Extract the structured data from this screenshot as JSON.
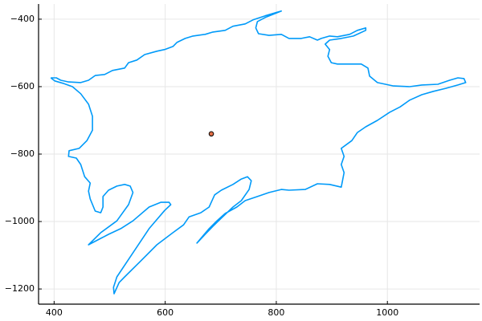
{
  "chart_data": {
    "type": "line",
    "xlim": [
      372,
      1166
    ],
    "ylim": [
      -1245,
      -355
    ],
    "xticks": [
      400,
      600,
      800,
      1000
    ],
    "yticks": [
      {
        "value": -400,
        "label": "−400"
      },
      {
        "value": -600,
        "label": "−600"
      },
      {
        "value": -800,
        "label": "−800"
      },
      {
        "value": -1000,
        "label": "−1000"
      },
      {
        "value": -1200,
        "label": "−1200"
      }
    ],
    "grid": true,
    "series": [
      {
        "type": "line",
        "color": "#009af9",
        "x": [
          394,
          404,
          412,
          426,
          448,
          462,
          474,
          491,
          505,
          527,
          534,
          549,
          563,
          585,
          599,
          614,
          621,
          636,
          650,
          672,
          686,
          708,
          722,
          744,
          758,
          780,
          802,
          809,
          780,
          766,
          763,
          768,
          787,
          809,
          823,
          845,
          860,
          874,
          881,
          896,
          910,
          932,
          946,
          961,
          961,
          939,
          917,
          896,
          888,
          896,
          893,
          899,
          910,
          932,
          953,
          965,
          968,
          982,
          1011,
          1040,
          1062,
          1091,
          1112,
          1127,
          1138,
          1141,
          1127,
          1105,
          1083,
          1062,
          1040,
          1023,
          1004,
          982,
          961,
          946,
          936,
          927,
          917,
          922,
          917,
          922,
          917,
          896,
          874,
          852,
          823,
          809,
          787,
          766,
          744,
          729,
          708,
          693,
          679,
          657,
          672,
          686,
          701,
          722,
          737,
          751,
          755,
          748,
          737,
          722,
          701,
          689,
          679,
          664,
          643,
          633,
          614,
          585,
          556,
          527,
          517,
          508,
          507,
          513,
          542,
          571,
          599,
          610,
          607,
          592,
          571,
          542,
          520,
          498,
          462,
          484,
          513,
          534,
          542,
          537,
          527,
          513,
          498,
          488,
          488,
          484,
          474,
          465,
          462,
          465,
          455,
          448,
          440,
          426,
          427,
          445,
          459,
          469,
          469,
          462,
          448,
          433,
          416,
          401,
          394
        ],
        "y": [
          -574,
          -574,
          -581,
          -586,
          -588,
          -581,
          -567,
          -564,
          -552,
          -545,
          -529,
          -521,
          -505,
          -495,
          -490,
          -481,
          -469,
          -457,
          -450,
          -445,
          -438,
          -433,
          -421,
          -414,
          -402,
          -390,
          -379,
          -376,
          -395,
          -407,
          -426,
          -443,
          -448,
          -445,
          -457,
          -457,
          -452,
          -462,
          -457,
          -450,
          -452,
          -445,
          -433,
          -426,
          -433,
          -450,
          -457,
          -462,
          -474,
          -490,
          -510,
          -529,
          -533,
          -533,
          -533,
          -545,
          -569,
          -588,
          -598,
          -600,
          -595,
          -593,
          -581,
          -574,
          -576,
          -588,
          -595,
          -605,
          -614,
          -624,
          -640,
          -660,
          -676,
          -700,
          -719,
          -736,
          -760,
          -771,
          -783,
          -807,
          -831,
          -855,
          -898,
          -890,
          -888,
          -905,
          -907,
          -905,
          -914,
          -926,
          -938,
          -957,
          -976,
          -998,
          -1021,
          -1064,
          -1038,
          -1014,
          -990,
          -957,
          -938,
          -905,
          -879,
          -867,
          -874,
          -890,
          -907,
          -921,
          -957,
          -974,
          -986,
          -1010,
          -1033,
          -1069,
          -1117,
          -1164,
          -1181,
          -1214,
          -1195,
          -1164,
          -1093,
          -1021,
          -967,
          -950,
          -943,
          -943,
          -957,
          -998,
          -1021,
          -1038,
          -1069,
          -1033,
          -998,
          -950,
          -914,
          -895,
          -890,
          -895,
          -907,
          -926,
          -957,
          -974,
          -969,
          -933,
          -910,
          -886,
          -867,
          -831,
          -812,
          -807,
          -790,
          -783,
          -760,
          -729,
          -688,
          -652,
          -621,
          -600,
          -590,
          -583,
          -574
        ]
      },
      {
        "type": "scatter",
        "color": "#e26f46",
        "x": [
          683
        ],
        "y": [
          -740
        ]
      }
    ]
  }
}
